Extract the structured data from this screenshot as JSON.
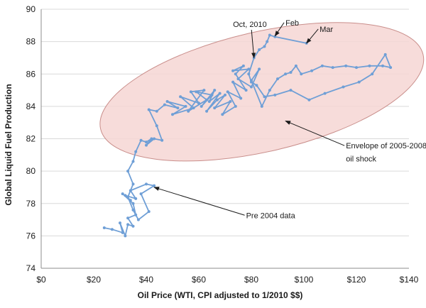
{
  "chart_data": {
    "type": "line",
    "title": "",
    "xlabel": "Oil Price (WTI, CPI adjusted to 1/2010 $$)",
    "ylabel": "Global Liquid Fuel Production",
    "xlim": [
      0,
      140
    ],
    "ylim": [
      74,
      90
    ],
    "x_ticks": [
      0,
      20,
      40,
      60,
      80,
      100,
      120,
      140
    ],
    "x_tick_labels": [
      "$0",
      "$20",
      "$40",
      "$60",
      "$80",
      "$100",
      "$120",
      "$140"
    ],
    "y_ticks": [
      74,
      76,
      78,
      80,
      82,
      84,
      86,
      88,
      90
    ],
    "y_tick_labels": [
      "74",
      "76",
      "78",
      "80",
      "82",
      "84",
      "86",
      "88",
      "90"
    ],
    "grid": "horizontal",
    "line_color": "#6f9fd6",
    "envelope_fill": "#f6d6d4",
    "envelope_stroke": "#c98e8b",
    "series": [
      {
        "points": [
          [
            24,
            76.5
          ],
          [
            27,
            76.4
          ],
          [
            31,
            76.2
          ],
          [
            30,
            76.8
          ],
          [
            32,
            76.0
          ],
          [
            33,
            76.7
          ],
          [
            35,
            76.6
          ],
          [
            33,
            77.1
          ],
          [
            36,
            77.3
          ],
          [
            35,
            78.0
          ],
          [
            31,
            78.6
          ],
          [
            34,
            78.2
          ],
          [
            32,
            78.5
          ],
          [
            36,
            78.3
          ],
          [
            34,
            78.8
          ],
          [
            40,
            79.2
          ],
          [
            43,
            79.1
          ],
          [
            38,
            78.6
          ],
          [
            41,
            77.5
          ],
          [
            37,
            77.0
          ],
          [
            35,
            77.6
          ],
          [
            33,
            78.4
          ],
          [
            35,
            79.2
          ],
          [
            33,
            80.0
          ],
          [
            35,
            80.6
          ],
          [
            36,
            81.2
          ],
          [
            38,
            81.9
          ],
          [
            40,
            81.8
          ],
          [
            42,
            82.0
          ],
          [
            40,
            81.6
          ],
          [
            43,
            82.0
          ],
          [
            46,
            81.9
          ],
          [
            44,
            82.8
          ],
          [
            41,
            83.8
          ],
          [
            44,
            83.7
          ],
          [
            47,
            84.1
          ],
          [
            52,
            83.9
          ],
          [
            48,
            84.3
          ],
          [
            55,
            84.0
          ],
          [
            50,
            83.5
          ],
          [
            58,
            83.9
          ],
          [
            53,
            84.6
          ],
          [
            60,
            84.2
          ],
          [
            57,
            84.9
          ],
          [
            62,
            85.0
          ],
          [
            56,
            83.7
          ],
          [
            63,
            84.4
          ],
          [
            59,
            84.9
          ],
          [
            65,
            84.7
          ],
          [
            61,
            84.0
          ],
          [
            66,
            85.0
          ],
          [
            64,
            84.3
          ],
          [
            68,
            84.8
          ],
          [
            63,
            83.7
          ],
          [
            67,
            84.4
          ],
          [
            70,
            84.7
          ],
          [
            66,
            83.9
          ],
          [
            72,
            84.3
          ],
          [
            69,
            83.5
          ],
          [
            74,
            84.0
          ],
          [
            71,
            84.9
          ],
          [
            76,
            84.5
          ],
          [
            73,
            85.5
          ],
          [
            78,
            85.0
          ],
          [
            74,
            86.0
          ],
          [
            77,
            86.5
          ],
          [
            73,
            86.2
          ],
          [
            79,
            86.3
          ],
          [
            75,
            85.7
          ],
          [
            80,
            85.2
          ],
          [
            83,
            86.3
          ],
          [
            80,
            85.6
          ],
          [
            84,
            84.0
          ],
          [
            87,
            85.0
          ],
          [
            90,
            85.7
          ],
          [
            93,
            86.0
          ],
          [
            95,
            86.1
          ],
          [
            97,
            86.5
          ],
          [
            99,
            86.0
          ],
          [
            103,
            86.2
          ],
          [
            107,
            86.5
          ],
          [
            111,
            86.4
          ],
          [
            116,
            86.5
          ],
          [
            120,
            86.4
          ],
          [
            125,
            86.5
          ],
          [
            130,
            86.5
          ],
          [
            133,
            86.4
          ],
          [
            131,
            87.2
          ],
          [
            126,
            86.0
          ],
          [
            121,
            85.5
          ],
          [
            115,
            85.2
          ],
          [
            108,
            84.8
          ],
          [
            102,
            84.4
          ],
          [
            95,
            85.0
          ],
          [
            89,
            84.7
          ],
          [
            85,
            84.6
          ],
          [
            82,
            85.3
          ],
          [
            80,
            85.5
          ],
          [
            79,
            86.0
          ],
          [
            81,
            87.0
          ],
          [
            83,
            87.5
          ],
          [
            85,
            87.7
          ],
          [
            86,
            88.0
          ],
          [
            87,
            88.4
          ],
          [
            89,
            88.3
          ],
          [
            101,
            87.9
          ]
        ]
      }
    ],
    "envelope": {
      "center": [
        84,
        84.9
      ],
      "rx": 63,
      "ry": 3.7,
      "angle_deg": -13
    },
    "annotations": [
      {
        "text": "Oct, 2010",
        "text_pos": [
          73,
          88.9
        ],
        "arrow_to": [
          81,
          87.0
        ]
      },
      {
        "text": "Feb",
        "text_pos": [
          93,
          89.0
        ],
        "arrow_to": [
          89,
          88.35
        ]
      },
      {
        "text": "Mar",
        "text_pos": [
          106,
          88.6
        ],
        "arrow_to": [
          101,
          87.9
        ]
      },
      {
        "text": "Envelope of 2005-2008",
        "text_pos": [
          116,
          81.4
        ],
        "arrow_to": [
          93,
          83.1
        ]
      },
      {
        "text": "oil shock",
        "text_pos": [
          116,
          80.6
        ],
        "arrow_to": null
      },
      {
        "text": "Pre 2004 data",
        "text_pos": [
          78,
          77.1
        ],
        "arrow_to": [
          43,
          79.0
        ]
      }
    ]
  }
}
